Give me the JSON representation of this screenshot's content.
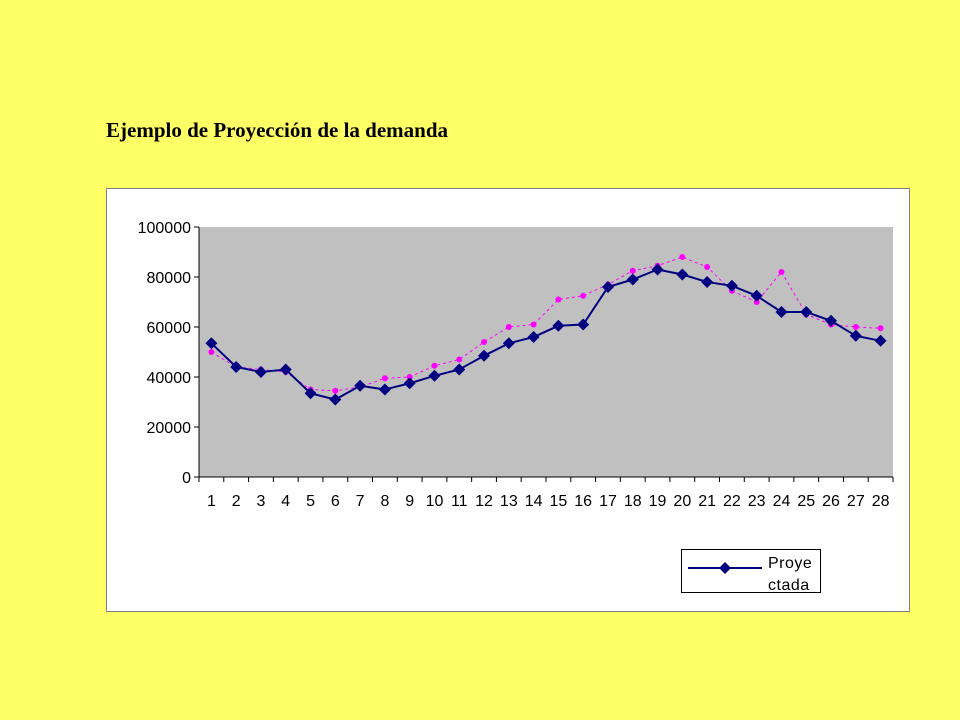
{
  "slide": {
    "title": "Ejemplo de Proyección de la demanda",
    "background_color": "#ffff66"
  },
  "chart_data": {
    "type": "line",
    "title": "",
    "xlabel": "",
    "ylabel": "",
    "categories": [
      "1",
      "2",
      "3",
      "4",
      "5",
      "6",
      "7",
      "8",
      "9",
      "10",
      "11",
      "12",
      "13",
      "14",
      "15",
      "16",
      "17",
      "18",
      "19",
      "20",
      "21",
      "22",
      "23",
      "24",
      "25",
      "26",
      "27",
      "28"
    ],
    "ylim": [
      0,
      100000
    ],
    "yticks": [
      0,
      20000,
      40000,
      60000,
      80000,
      100000
    ],
    "grid": false,
    "plot_background": "#c0c0c0",
    "legend_position": "bottom-right",
    "series": [
      {
        "name": "Proyectada",
        "color": "#000080",
        "marker": "diamond",
        "line": "solid",
        "values": [
          53500,
          44000,
          42000,
          43000,
          33500,
          31000,
          36500,
          35000,
          37500,
          40500,
          43000,
          48500,
          53500,
          56000,
          60500,
          61000,
          76000,
          79000,
          83000,
          81000,
          78000,
          76500,
          72500,
          66000,
          66000,
          62500,
          56500,
          54500
        ]
      },
      {
        "color": "#ff00ff",
        "marker": "circle",
        "line": "dashed",
        "values": [
          50000,
          44000,
          43000,
          42000,
          35000,
          34500,
          36000,
          39500,
          40000,
          44500,
          47000,
          54000,
          60000,
          61000,
          71000,
          72500,
          77000,
          82500,
          84500,
          88000,
          84000,
          74500,
          70000,
          82000,
          65000,
          61000,
          60000,
          59500
        ]
      }
    ]
  }
}
